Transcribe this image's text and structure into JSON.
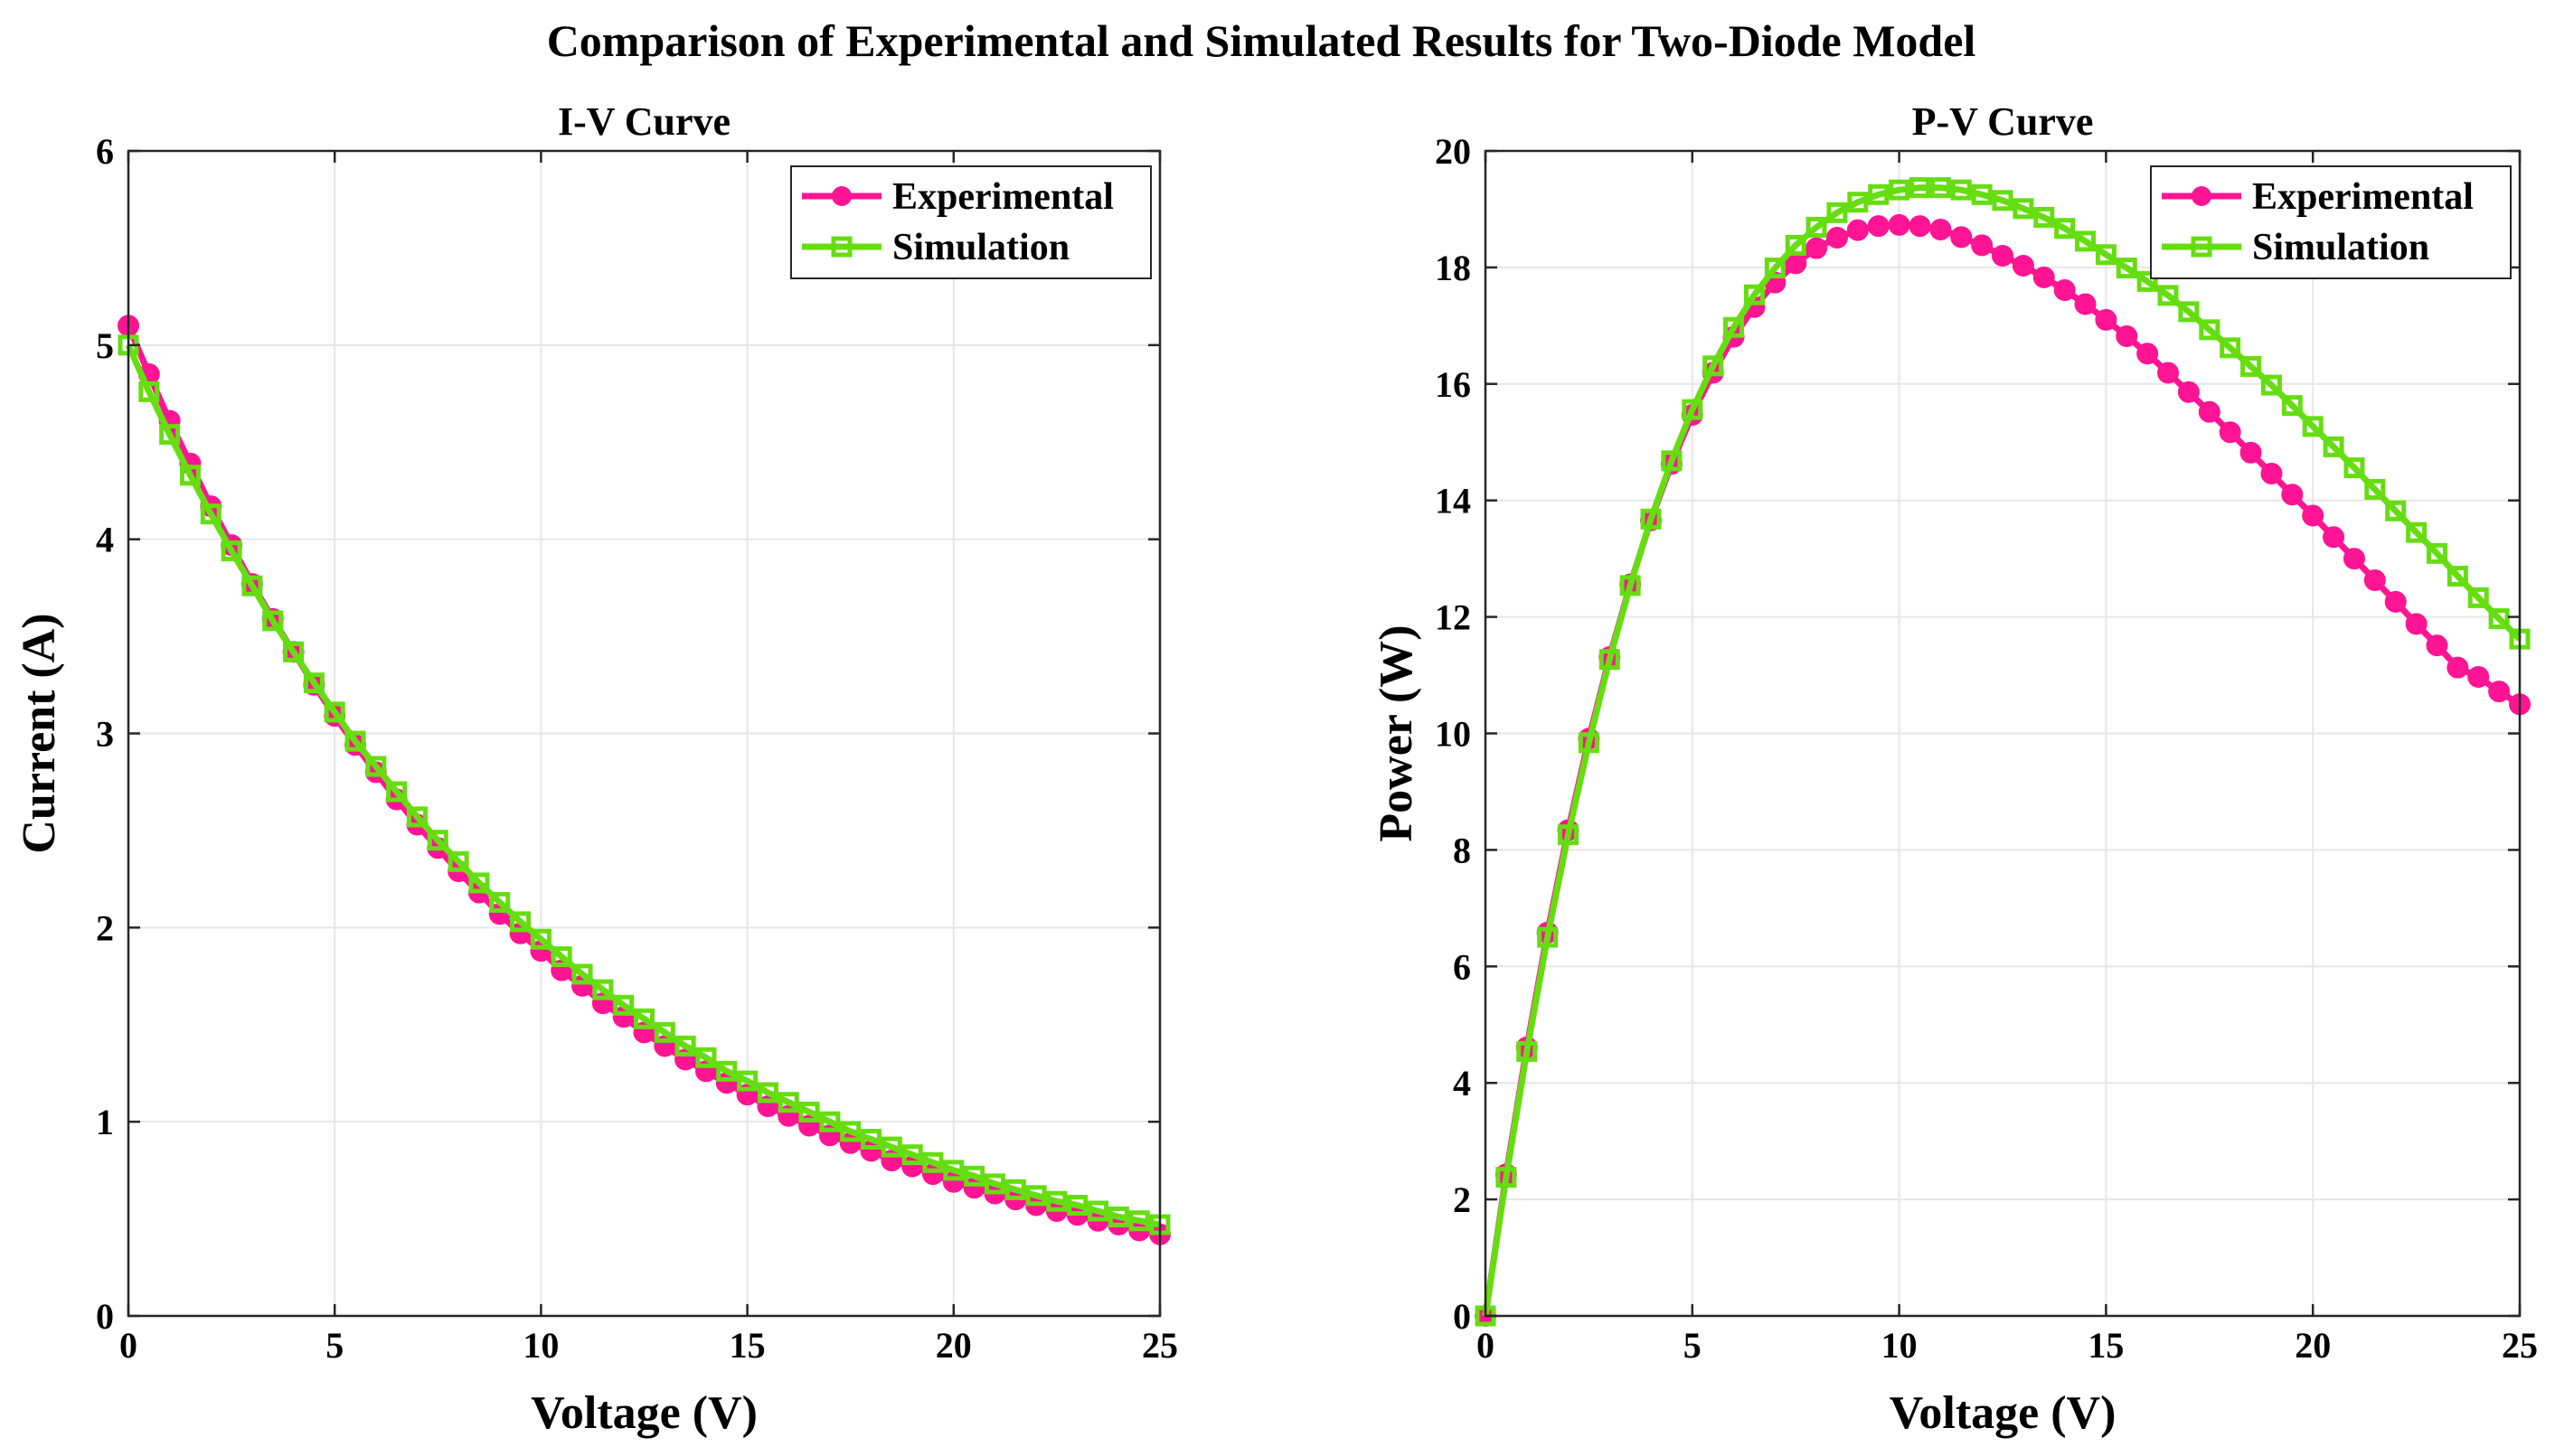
{
  "figure_title": "Comparison of Experimental and Simulated Results for Two-Diode Model",
  "colors": {
    "experimental": "#ff1493",
    "simulation": "#66dd11",
    "axes": "#262626",
    "grid": "#e6e6e6"
  },
  "chart_data": [
    {
      "type": "line",
      "title": "I-V Curve",
      "xlabel": "Voltage (V)",
      "ylabel": "Current (A)",
      "xlim": [
        0,
        25
      ],
      "ylim": [
        0,
        6
      ],
      "xticks": [
        0,
        5,
        10,
        15,
        20,
        25
      ],
      "yticks": [
        0,
        1,
        2,
        3,
        4,
        5,
        6
      ],
      "grid": true,
      "legend": "top-right",
      "x": [
        0,
        0.5,
        1,
        1.5,
        2,
        2.5,
        3,
        3.5,
        4,
        4.5,
        5,
        5.5,
        6,
        6.5,
        7,
        7.5,
        8,
        8.5,
        9,
        9.5,
        10,
        10.5,
        11,
        11.5,
        12,
        12.5,
        13,
        13.5,
        14,
        14.5,
        15,
        15.5,
        16,
        16.5,
        17,
        17.5,
        18,
        18.5,
        19,
        19.5,
        20,
        20.5,
        21,
        21.5,
        22,
        22.5,
        23,
        23.5,
        24,
        24.5,
        25
      ],
      "series": [
        {
          "name": "Experimental",
          "marker": "circle",
          "values": [
            5.1,
            4.85,
            4.61,
            4.39,
            4.17,
            3.97,
            3.77,
            3.59,
            3.42,
            3.25,
            3.09,
            2.94,
            2.8,
            2.66,
            2.53,
            2.41,
            2.29,
            2.18,
            2.07,
            1.97,
            1.88,
            1.78,
            1.7,
            1.61,
            1.54,
            1.46,
            1.39,
            1.32,
            1.26,
            1.2,
            1.14,
            1.08,
            1.03,
            0.98,
            0.93,
            0.89,
            0.85,
            0.8,
            0.77,
            0.73,
            0.69,
            0.66,
            0.63,
            0.6,
            0.57,
            0.54,
            0.52,
            0.49,
            0.47,
            0.44,
            0.42
          ]
        },
        {
          "name": "Simulation",
          "marker": "square",
          "values": [
            5.0,
            4.76,
            4.54,
            4.33,
            4.13,
            3.94,
            3.76,
            3.58,
            3.42,
            3.26,
            3.11,
            2.96,
            2.83,
            2.7,
            2.57,
            2.45,
            2.34,
            2.23,
            2.13,
            2.03,
            1.94,
            1.85,
            1.76,
            1.68,
            1.6,
            1.53,
            1.46,
            1.39,
            1.33,
            1.26,
            1.21,
            1.15,
            1.1,
            1.05,
            1.0,
            0.95,
            0.91,
            0.87,
            0.83,
            0.79,
            0.75,
            0.72,
            0.68,
            0.65,
            0.62,
            0.59,
            0.57,
            0.54,
            0.51,
            0.49,
            0.47
          ]
        }
      ]
    },
    {
      "type": "line",
      "title": "P-V Curve",
      "xlabel": "Voltage (V)",
      "ylabel": "Power (W)",
      "xlim": [
        0,
        25
      ],
      "ylim": [
        0,
        20
      ],
      "xticks": [
        0,
        5,
        10,
        15,
        20,
        25
      ],
      "yticks": [
        0,
        2,
        4,
        6,
        8,
        10,
        12,
        14,
        16,
        18,
        20
      ],
      "grid": true,
      "legend": "top-right",
      "x": [
        0,
        0.5,
        1,
        1.5,
        2,
        2.5,
        3,
        3.5,
        4,
        4.5,
        5,
        5.5,
        6,
        6.5,
        7,
        7.5,
        8,
        8.5,
        9,
        9.5,
        10,
        10.5,
        11,
        11.5,
        12,
        12.5,
        13,
        13.5,
        14,
        14.5,
        15,
        15.5,
        16,
        16.5,
        17,
        17.5,
        18,
        18.5,
        19,
        19.5,
        20,
        20.5,
        21,
        21.5,
        22,
        22.5,
        23,
        23.5,
        24,
        24.5,
        25
      ],
      "series": [
        {
          "name": "Experimental",
          "marker": "circle",
          "values": [
            0.0,
            2.43,
            4.61,
            6.58,
            8.34,
            9.91,
            11.31,
            12.56,
            13.66,
            14.63,
            15.47,
            16.19,
            16.81,
            17.32,
            17.74,
            18.07,
            18.33,
            18.51,
            18.64,
            18.71,
            18.73,
            18.71,
            18.65,
            18.52,
            18.38,
            18.2,
            18.03,
            17.83,
            17.61,
            17.37,
            17.1,
            16.82,
            16.52,
            16.19,
            15.86,
            15.52,
            15.17,
            14.82,
            14.46,
            14.1,
            13.74,
            13.37,
            13.0,
            12.63,
            12.26,
            11.88,
            11.51,
            11.13,
            10.97,
            10.72,
            10.5
          ]
        },
        {
          "name": "Simulation",
          "marker": "square",
          "values": [
            0.0,
            2.38,
            4.54,
            6.5,
            8.26,
            9.84,
            11.27,
            12.54,
            13.68,
            14.68,
            15.56,
            16.31,
            16.97,
            17.53,
            17.99,
            18.38,
            18.69,
            18.94,
            19.12,
            19.25,
            19.33,
            19.37,
            19.37,
            19.33,
            19.25,
            19.15,
            19.01,
            18.86,
            18.67,
            18.45,
            18.22,
            17.99,
            17.76,
            17.52,
            17.24,
            16.93,
            16.62,
            16.3,
            15.98,
            15.63,
            15.27,
            14.92,
            14.56,
            14.19,
            13.82,
            13.45,
            13.09,
            12.7,
            12.33,
            11.97,
            11.62
          ]
        }
      ]
    }
  ]
}
